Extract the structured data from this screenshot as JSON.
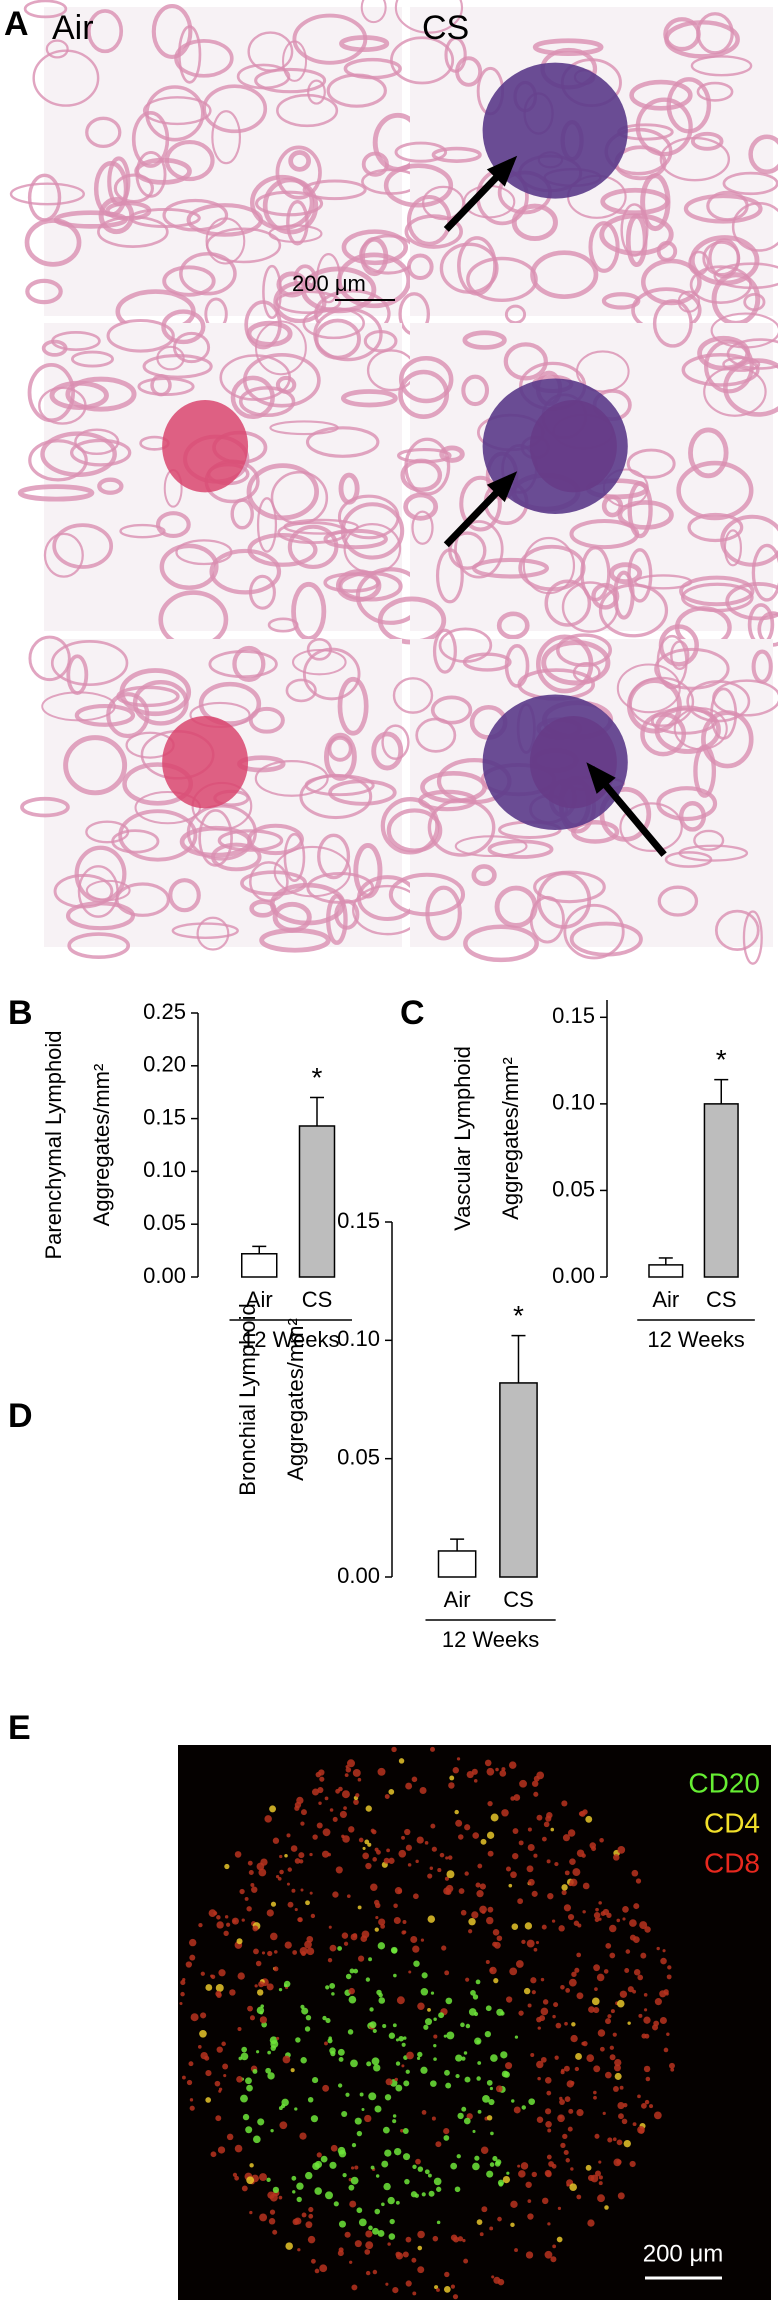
{
  "figure": {
    "panel_labels": [
      "A",
      "B",
      "C",
      "D",
      "E"
    ],
    "he_labels": [
      "Air",
      "CS"
    ],
    "he_scale": "200 μm",
    "if_labels": [
      {
        "text": "CD20",
        "color": "#66ee33"
      },
      {
        "text": "CD4",
        "color": "#f2e02a"
      },
      {
        "text": "CD8",
        "color": "#e8281e"
      }
    ],
    "if_scale": "200 μm"
  },
  "chart_data": [
    {
      "type": "bar",
      "y_label": [
        "Parenchymal Lymphoid",
        "Aggregates/mm²"
      ],
      "categories": [
        "Air",
        "CS"
      ],
      "values": [
        0.022,
        0.143
      ],
      "errors": [
        0.007,
        0.027
      ],
      "colors": [
        "#ffffff",
        "#bdbdbd"
      ],
      "group_label": "12 Weeks",
      "annotation": "*",
      "ylim": [
        0,
        0.25
      ],
      "yticks": [
        {
          "value": 0,
          "label": "0.00"
        },
        {
          "value": 0.05,
          "label": "0.05"
        },
        {
          "value": 0.1,
          "label": "0.10"
        },
        {
          "value": 0.15,
          "label": "0.15"
        },
        {
          "value": 0.2,
          "label": "0.20"
        },
        {
          "value": 0.25,
          "label": "0.25"
        }
      ]
    },
    {
      "type": "bar",
      "y_label": [
        "Vascular Lymphoid",
        "Aggregates/mm²"
      ],
      "categories": [
        "Air",
        "CS"
      ],
      "values": [
        0.007,
        0.1
      ],
      "errors": [
        0.004,
        0.014
      ],
      "colors": [
        "#ffffff",
        "#bdbdbd"
      ],
      "group_label": "12 Weeks",
      "annotation": "*",
      "ylim": [
        0,
        0.16
      ],
      "yticks": [
        {
          "value": 0,
          "label": "0.00"
        },
        {
          "value": 0.05,
          "label": "0.05"
        },
        {
          "value": 0.1,
          "label": "0.10"
        },
        {
          "value": 0.15,
          "label": "0.15"
        }
      ]
    },
    {
      "type": "bar",
      "y_label": [
        "Bronchial Lymphoid",
        "Aggregates/mm²"
      ],
      "categories": [
        "Air",
        "CS"
      ],
      "values": [
        0.011,
        0.082
      ],
      "errors": [
        0.005,
        0.02
      ],
      "colors": [
        "#ffffff",
        "#bdbdbd"
      ],
      "group_label": "12 Weeks",
      "annotation": "*",
      "ylim": [
        0,
        0.15
      ],
      "yticks": [
        {
          "value": 0,
          "label": "0.00"
        },
        {
          "value": 0.05,
          "label": "0.05"
        },
        {
          "value": 0.1,
          "label": "0.10"
        },
        {
          "value": 0.15,
          "label": "0.15"
        }
      ]
    }
  ]
}
